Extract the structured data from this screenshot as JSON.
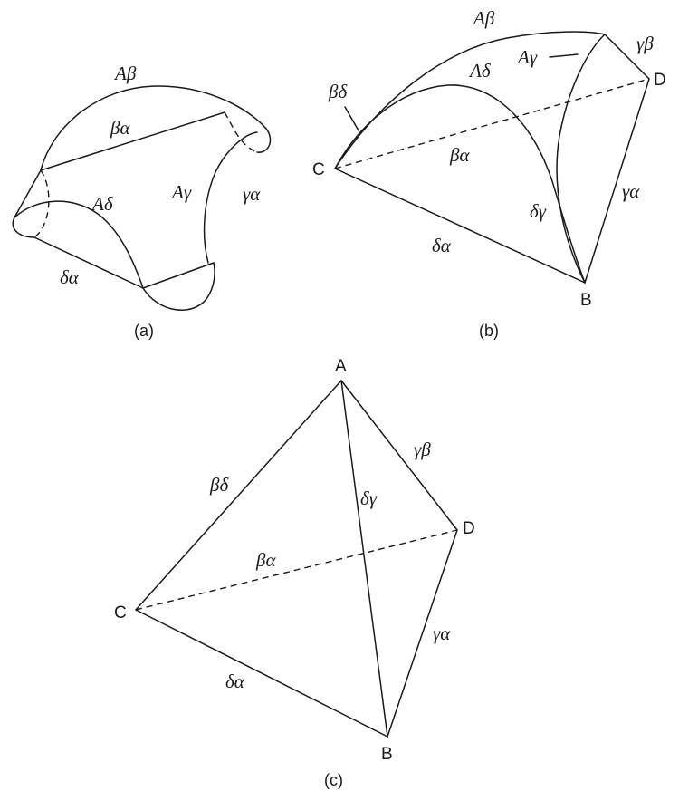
{
  "panel_a": {
    "caption": "(a)",
    "labels": {
      "ab": "Aβ",
      "ba": "βα",
      "ad": "Aδ",
      "ag": "Aγ",
      "ga": "γα",
      "da": "δα"
    }
  },
  "panel_b": {
    "caption": "(b)",
    "labels": {
      "ab": "Aβ",
      "gb": "γβ",
      "ag": "Aγ",
      "ad": "Aδ",
      "bd": "βδ",
      "ba": "βα",
      "dg": "δγ",
      "ga": "γα",
      "da": "δα"
    },
    "vertices": {
      "c": "C",
      "d": "D",
      "b": "B"
    }
  },
  "panel_c": {
    "caption": "(c)",
    "labels": {
      "gb": "γβ",
      "bd": "βδ",
      "dg": "δγ",
      "ba": "βα",
      "ga": "γα",
      "da": "δα"
    },
    "vertices": {
      "a": "A",
      "c": "C",
      "d": "D",
      "b": "B"
    }
  }
}
